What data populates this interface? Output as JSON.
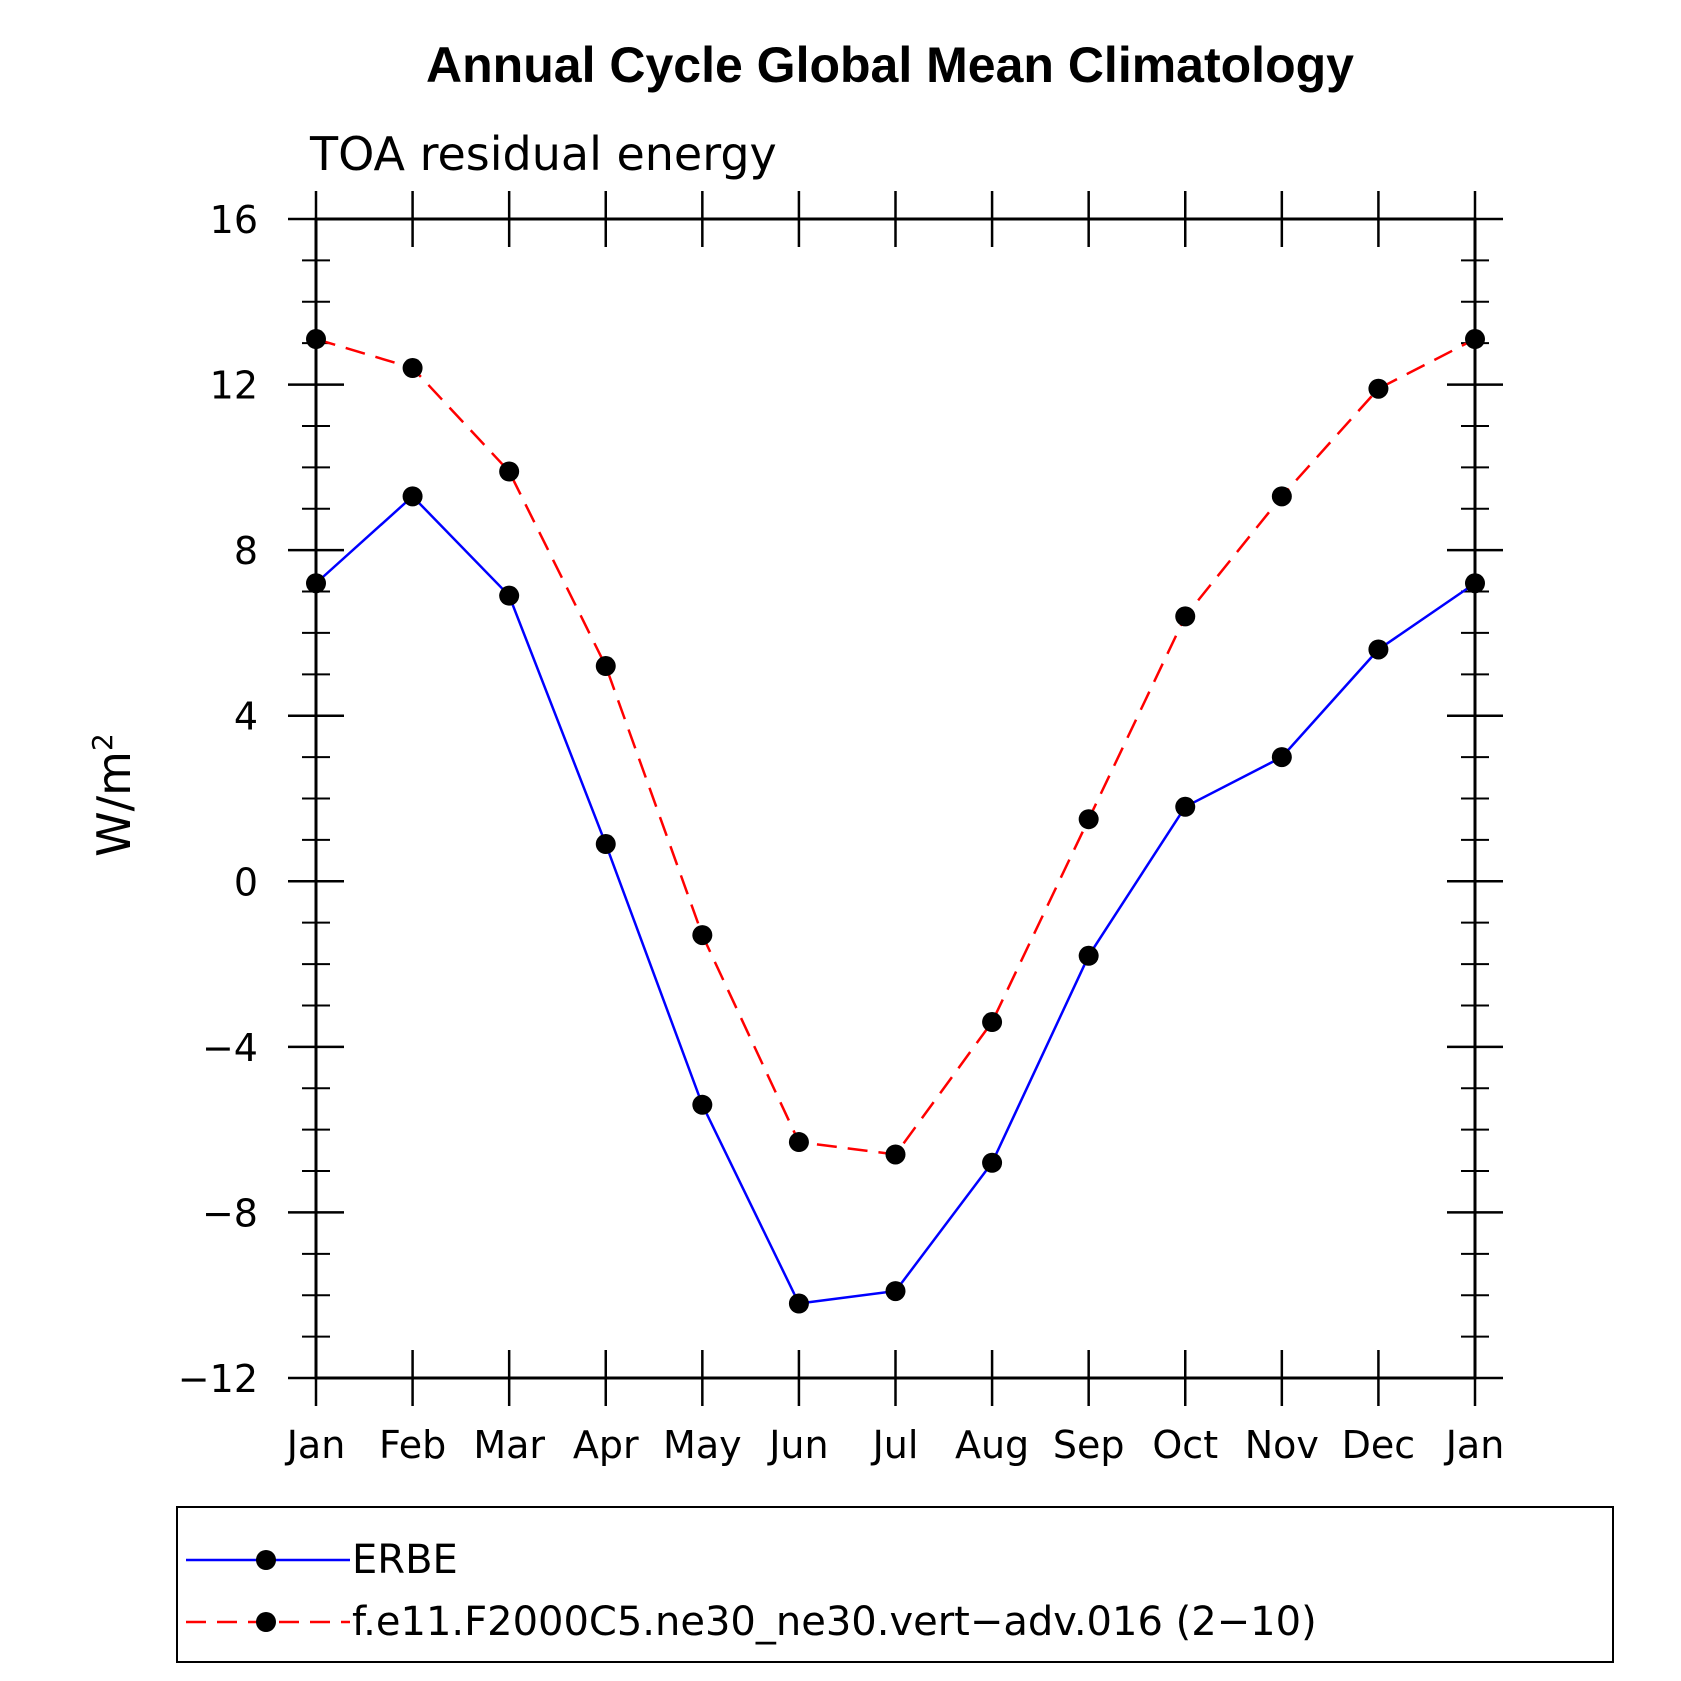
{
  "chart_data": {
    "type": "line",
    "title": "Annual Cycle Global Mean Climatology",
    "subtitle": "TOA residual energy",
    "ylabel": "W/m",
    "ylabel_superscript": "2",
    "categories": [
      "Jan",
      "Feb",
      "Mar",
      "Apr",
      "May",
      "Jun",
      "Jul",
      "Aug",
      "Sep",
      "Oct",
      "Nov",
      "Dec",
      "Jan"
    ],
    "ylim": [
      -12,
      16
    ],
    "yticks": [
      -12,
      -8,
      -4,
      0,
      4,
      8,
      12,
      16
    ],
    "ytick_labels": [
      "−12",
      "−8",
      "−4",
      "0",
      "4",
      "8",
      "12",
      "16"
    ],
    "grid": false,
    "legend_position": "bottom",
    "series": [
      {
        "name": "ERBE",
        "color": "#0000ff",
        "style": "solid",
        "marker": "filled-circle",
        "values": [
          7.2,
          9.3,
          6.9,
          0.9,
          -5.4,
          -10.2,
          -9.9,
          -6.8,
          -1.8,
          1.8,
          3.0,
          5.6,
          7.2
        ]
      },
      {
        "name": "f.e11.F2000C5.ne30_ne30.vert−adv.016 (2−10)",
        "color": "#ff0000",
        "style": "dashed",
        "marker": "filled-circle",
        "values": [
          13.1,
          12.4,
          9.9,
          5.2,
          -1.3,
          -6.3,
          -6.6,
          -3.4,
          1.5,
          6.4,
          9.3,
          11.9,
          13.1
        ]
      }
    ]
  }
}
